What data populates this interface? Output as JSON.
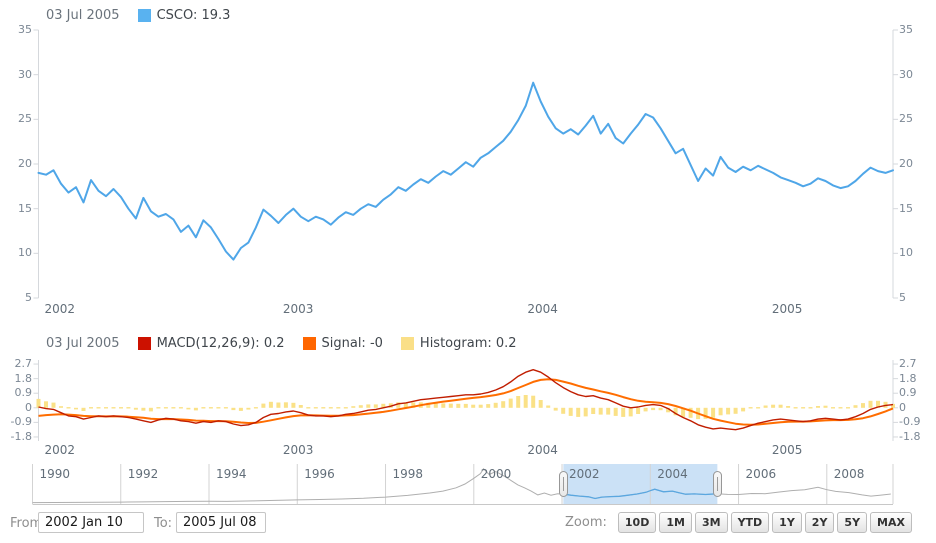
{
  "price_pane": {
    "legend": {
      "date": "03 Jul 2005",
      "series_label": "CSCO: 19.3"
    },
    "y_ticks": [
      35,
      30,
      25,
      20,
      15,
      10,
      5
    ],
    "x_year_labels": [
      "2002",
      "2003",
      "2004",
      "2005"
    ]
  },
  "macd_pane": {
    "legend": {
      "date": "03 Jul 2005",
      "macd_label": "MACD(12,26,9): 0.2",
      "signal_label": "Signal: -0",
      "histogram_label": "Histogram: 0.2"
    },
    "y_ticks": [
      2.7,
      1.8,
      0.9,
      0,
      -0.9,
      -1.8
    ],
    "x_year_labels": [
      "2002",
      "2003",
      "2004",
      "2005"
    ]
  },
  "scroller": {
    "year_labels": [
      "1990",
      "1992",
      "1994",
      "1996",
      "1998",
      "2000",
      "2002",
      "2004",
      "2006",
      "2008"
    ],
    "year_range": [
      1990.0,
      2009.5
    ],
    "selection": {
      "from_year": 2002.03,
      "to_year": 2005.52
    }
  },
  "controls": {
    "from_label": "From:",
    "from_value": "2002 Jan 10",
    "to_label": "To:",
    "to_value": "2005 Jul 08",
    "zoom_label": "Zoom:",
    "zoom_buttons": [
      "10D",
      "1M",
      "3M",
      "YTD",
      "1Y",
      "2Y",
      "5Y",
      "MAX"
    ]
  },
  "colors": {
    "csco_line": "#4FA6E8",
    "csco_swatch": "#59B2F0",
    "macd_line": "#C01D00",
    "macd_swatch": "#CC1100",
    "signal_line": "#FF6D00",
    "signal_swatch": "#FF6600",
    "histogram_fill": "#FAE187",
    "histogram_swatch": "#FADF87",
    "axis_line": "#D5D8DC",
    "scroller_grid": "#D3D3D3",
    "scroller_line_out": "#AFAFAF",
    "scroller_line_in": "#5AA7E0",
    "selection_fill": "#CBE1F6"
  },
  "chart_data": [
    {
      "type": "line",
      "name": "CSCO",
      "title": "CSCO price, weekly, 10 Jan 2002 - 08 Jul 2005",
      "x_range": [
        "2002 Jan 10",
        "2005 Jul 08"
      ],
      "x_range_years": [
        2002.025,
        2005.52
      ],
      "year_ticks": [
        2002,
        2003,
        2004,
        2005
      ],
      "ylim": [
        5,
        35
      ],
      "y_ticks": [
        35,
        30,
        25,
        20,
        15,
        10,
        5
      ],
      "last_value": 19.3,
      "values": [
        19.0,
        18.8,
        19.3,
        17.8,
        16.8,
        17.4,
        15.7,
        18.2,
        17.0,
        16.4,
        17.2,
        16.3,
        15.0,
        13.9,
        16.2,
        14.7,
        14.1,
        14.4,
        13.8,
        12.4,
        13.1,
        11.8,
        13.7,
        12.9,
        11.6,
        10.2,
        9.3,
        10.6,
        11.2,
        12.9,
        14.9,
        14.2,
        13.4,
        14.3,
        15.0,
        14.1,
        13.6,
        14.1,
        13.8,
        13.2,
        14.0,
        14.6,
        14.3,
        15.0,
        15.5,
        15.2,
        16.0,
        16.6,
        17.4,
        17.0,
        17.7,
        18.3,
        17.9,
        18.6,
        19.2,
        18.8,
        19.5,
        20.2,
        19.7,
        20.7,
        21.2,
        21.9,
        22.6,
        23.6,
        24.9,
        26.5,
        29.1,
        27.0,
        25.3,
        24.0,
        23.4,
        23.9,
        23.3,
        24.3,
        25.4,
        23.4,
        24.5,
        22.9,
        22.3,
        23.4,
        24.4,
        25.6,
        25.2,
        24.0,
        22.6,
        21.2,
        21.7,
        19.9,
        18.1,
        19.5,
        18.7,
        20.8,
        19.6,
        19.1,
        19.7,
        19.3,
        19.8,
        19.4,
        19.0,
        18.5,
        18.2,
        17.9,
        17.5,
        17.8,
        18.4,
        18.1,
        17.6,
        17.3,
        17.5,
        18.1,
        18.9,
        19.6,
        19.2,
        19.0,
        19.3
      ]
    },
    {
      "type": "line+bar",
      "name": "MACD(12,26,9)",
      "ylim": [
        -2.1,
        2.7
      ],
      "y_ticks": [
        2.7,
        1.8,
        0.9,
        0,
        -0.9,
        -1.8
      ],
      "histogram_rule": "macd_minus_signal",
      "last_values": {
        "macd": 0.2,
        "signal": -0.0,
        "histogram": 0.2
      },
      "series": [
        {
          "name": "MACD",
          "values": [
            0.05,
            -0.05,
            -0.1,
            -0.3,
            -0.5,
            -0.55,
            -0.7,
            -0.6,
            -0.5,
            -0.55,
            -0.5,
            -0.55,
            -0.6,
            -0.7,
            -0.8,
            -0.9,
            -0.75,
            -0.65,
            -0.7,
            -0.8,
            -0.85,
            -0.95,
            -0.85,
            -0.9,
            -0.8,
            -0.85,
            -1.0,
            -1.1,
            -1.05,
            -0.9,
            -0.6,
            -0.4,
            -0.35,
            -0.25,
            -0.2,
            -0.3,
            -0.45,
            -0.5,
            -0.5,
            -0.55,
            -0.5,
            -0.4,
            -0.35,
            -0.25,
            -0.15,
            -0.1,
            0.0,
            0.1,
            0.25,
            0.3,
            0.4,
            0.5,
            0.55,
            0.6,
            0.65,
            0.7,
            0.75,
            0.8,
            0.8,
            0.85,
            0.95,
            1.1,
            1.3,
            1.6,
            1.95,
            2.2,
            2.35,
            2.2,
            1.9,
            1.55,
            1.25,
            1.0,
            0.8,
            0.7,
            0.75,
            0.6,
            0.5,
            0.3,
            0.1,
            0.0,
            0.05,
            0.15,
            0.2,
            0.15,
            -0.05,
            -0.35,
            -0.6,
            -0.8,
            -1.05,
            -1.2,
            -1.3,
            -1.25,
            -1.3,
            -1.35,
            -1.25,
            -1.1,
            -0.95,
            -0.85,
            -0.75,
            -0.7,
            -0.75,
            -0.8,
            -0.85,
            -0.8,
            -0.7,
            -0.65,
            -0.7,
            -0.75,
            -0.7,
            -0.55,
            -0.35,
            -0.1,
            0.05,
            0.15,
            0.2
          ]
        },
        {
          "name": "Signal",
          "values": [
            -0.5,
            -0.45,
            -0.42,
            -0.4,
            -0.42,
            -0.45,
            -0.5,
            -0.52,
            -0.52,
            -0.53,
            -0.52,
            -0.53,
            -0.55,
            -0.58,
            -0.62,
            -0.68,
            -0.7,
            -0.7,
            -0.7,
            -0.72,
            -0.75,
            -0.79,
            -0.8,
            -0.82,
            -0.82,
            -0.83,
            -0.86,
            -0.91,
            -0.94,
            -0.93,
            -0.86,
            -0.77,
            -0.68,
            -0.59,
            -0.51,
            -0.47,
            -0.46,
            -0.47,
            -0.48,
            -0.49,
            -0.49,
            -0.47,
            -0.45,
            -0.41,
            -0.36,
            -0.31,
            -0.25,
            -0.18,
            -0.09,
            -0.01,
            0.07,
            0.16,
            0.24,
            0.31,
            0.38,
            0.44,
            0.5,
            0.56,
            0.61,
            0.66,
            0.72,
            0.79,
            0.89,
            1.03,
            1.22,
            1.41,
            1.6,
            1.72,
            1.76,
            1.72,
            1.62,
            1.5,
            1.36,
            1.23,
            1.13,
            1.02,
            0.92,
            0.8,
            0.66,
            0.53,
            0.43,
            0.37,
            0.34,
            0.3,
            0.23,
            0.11,
            -0.03,
            -0.18,
            -0.35,
            -0.52,
            -0.68,
            -0.79,
            -0.89,
            -0.98,
            -1.03,
            -1.05,
            -1.03,
            -0.99,
            -0.94,
            -0.89,
            -0.86,
            -0.85,
            -0.85,
            -0.84,
            -0.81,
            -0.78,
            -0.76,
            -0.76,
            -0.75,
            -0.71,
            -0.64,
            -0.53,
            -0.38,
            -0.22,
            -0.04
          ]
        }
      ]
    },
    {
      "type": "line",
      "name": "scroller-overview",
      "title": "CSCO full history 1990-2009 (range selector)",
      "ylim": [
        0,
        80
      ],
      "points": [
        [
          1990,
          0.9
        ],
        [
          1990.5,
          1.0
        ],
        [
          1991,
          1.2
        ],
        [
          1991.5,
          1.5
        ],
        [
          1992,
          2.0
        ],
        [
          1992.5,
          2.4
        ],
        [
          1993,
          2.9
        ],
        [
          1993.5,
          3.4
        ],
        [
          1994,
          3.8
        ],
        [
          1994.4,
          3.3
        ],
        [
          1995,
          4.4
        ],
        [
          1995.5,
          5.5
        ],
        [
          1996,
          6.5
        ],
        [
          1996.5,
          7.3
        ],
        [
          1997,
          8.4
        ],
        [
          1997.5,
          10.0
        ],
        [
          1998,
          12.5
        ],
        [
          1998.5,
          16.0
        ],
        [
          1999,
          21.0
        ],
        [
          1999.3,
          25.0
        ],
        [
          1999.6,
          32.0
        ],
        [
          1999.8,
          40.0
        ],
        [
          2000.0,
          52.0
        ],
        [
          2000.15,
          62.0
        ],
        [
          2000.22,
          72.0
        ],
        [
          2000.35,
          60.0
        ],
        [
          2000.5,
          66.0
        ],
        [
          2000.7,
          56.0
        ],
        [
          2000.85,
          47.0
        ],
        [
          2001.0,
          38.0
        ],
        [
          2001.15,
          32.0
        ],
        [
          2001.3,
          25.0
        ],
        [
          2001.45,
          17.0
        ],
        [
          2001.6,
          21.0
        ],
        [
          2001.75,
          16.5
        ],
        [
          2001.9,
          19.5
        ],
        [
          2002.05,
          18.5
        ],
        [
          2002.2,
          16.5
        ],
        [
          2002.4,
          14.5
        ],
        [
          2002.6,
          13.0
        ],
        [
          2002.75,
          9.5
        ],
        [
          2002.9,
          12.5
        ],
        [
          2003.1,
          13.5
        ],
        [
          2003.3,
          14.2
        ],
        [
          2003.5,
          16.5
        ],
        [
          2003.7,
          19.0
        ],
        [
          2003.9,
          22.5
        ],
        [
          2004.03,
          27.0
        ],
        [
          2004.1,
          29.0
        ],
        [
          2004.3,
          23.5
        ],
        [
          2004.5,
          25.0
        ],
        [
          2004.65,
          21.5
        ],
        [
          2004.8,
          18.5
        ],
        [
          2005.0,
          19.2
        ],
        [
          2005.25,
          17.8
        ],
        [
          2005.5,
          19.3
        ],
        [
          2005.75,
          18.2
        ],
        [
          2006.0,
          17.8
        ],
        [
          2006.3,
          20.0
        ],
        [
          2006.6,
          19.5
        ],
        [
          2006.9,
          23.0
        ],
        [
          2007.2,
          26.0
        ],
        [
          2007.5,
          28.0
        ],
        [
          2007.8,
          33.0
        ],
        [
          2008.0,
          28.0
        ],
        [
          2008.2,
          24.5
        ],
        [
          2008.5,
          22.0
        ],
        [
          2008.8,
          17.0
        ],
        [
          2009.0,
          14.5
        ],
        [
          2009.2,
          16.5
        ],
        [
          2009.45,
          19.0
        ]
      ]
    }
  ]
}
